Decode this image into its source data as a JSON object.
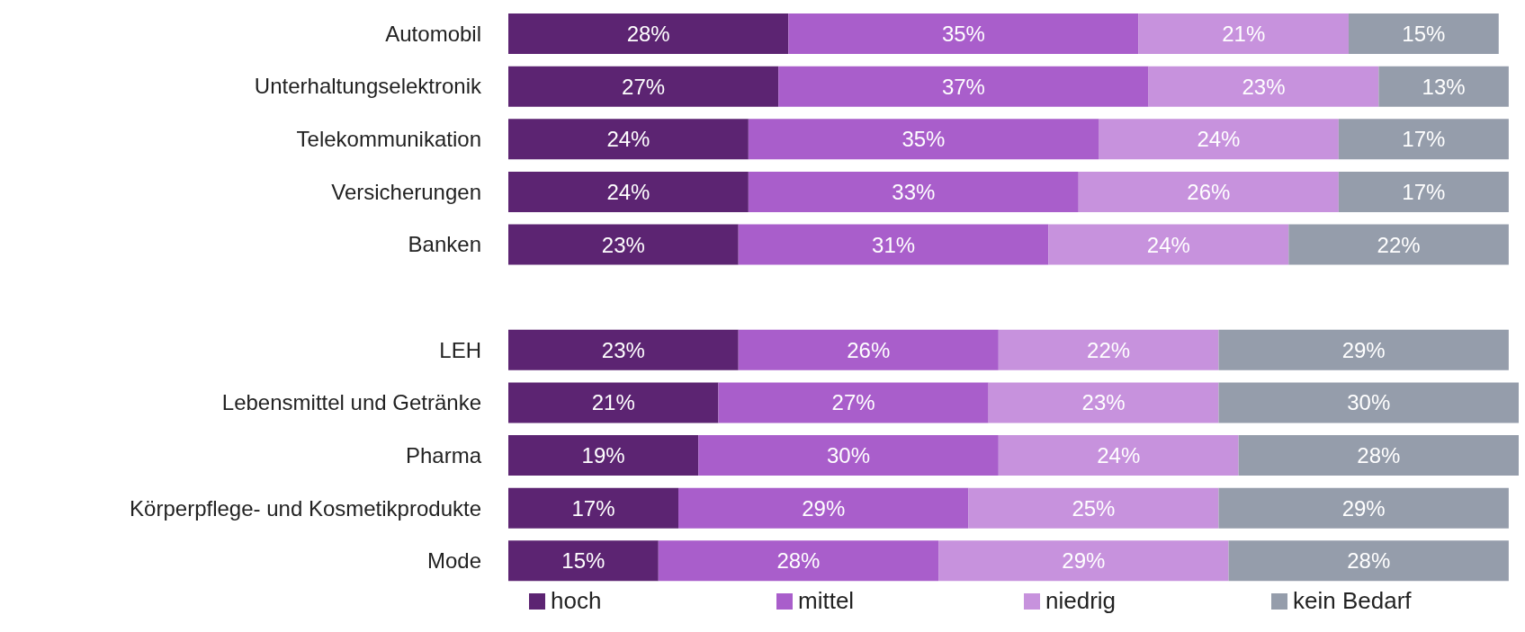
{
  "chart_data": {
    "type": "bar",
    "orientation": "horizontal",
    "stacked": true,
    "legend": "bottom",
    "categories": [
      "Automobil",
      "Unterhaltungselektronik",
      "Telekommunikation",
      "Versicherungen",
      "Banken",
      null,
      "LEH",
      "Lebensmittel und Getränke",
      "Pharma",
      "Körperpflege- und Kosmetikprodukte",
      "Mode"
    ],
    "series": [
      {
        "name": "hoch",
        "color": "#5c2472",
        "values": [
          28,
          27,
          24,
          24,
          23,
          null,
          23,
          21,
          19,
          17,
          15
        ],
        "value_labels": [
          "28%",
          "27%",
          "24%",
          "24%",
          "23%",
          null,
          "23%",
          "21%",
          "19%",
          "17%",
          "15%"
        ]
      },
      {
        "name": "mittel",
        "color": "#a95ecb",
        "values": [
          35,
          37,
          35,
          33,
          31,
          null,
          26,
          27,
          30,
          29,
          28
        ],
        "value_labels": [
          "35%",
          "37%",
          "35%",
          "33%",
          "31%",
          null,
          "26%",
          "27%",
          "30%",
          "29%",
          "28%"
        ]
      },
      {
        "name": "niedrig",
        "color": "#c792dd",
        "values": [
          21,
          23,
          24,
          26,
          24,
          null,
          22,
          23,
          24,
          25,
          29
        ],
        "value_labels": [
          "21%",
          "23%",
          "24%",
          "26%",
          "24%",
          null,
          "22%",
          "23%",
          "24%",
          "25%",
          "29%"
        ]
      },
      {
        "name": "kein Bedarf",
        "color": "#959dab",
        "values": [
          15,
          13,
          17,
          17,
          22,
          null,
          29,
          30,
          28,
          29,
          28
        ],
        "value_labels": [
          "15%",
          "13%",
          "17%",
          "17%",
          "22%",
          null,
          "29%",
          "30%",
          "28%",
          "29%",
          "28%"
        ]
      }
    ]
  }
}
